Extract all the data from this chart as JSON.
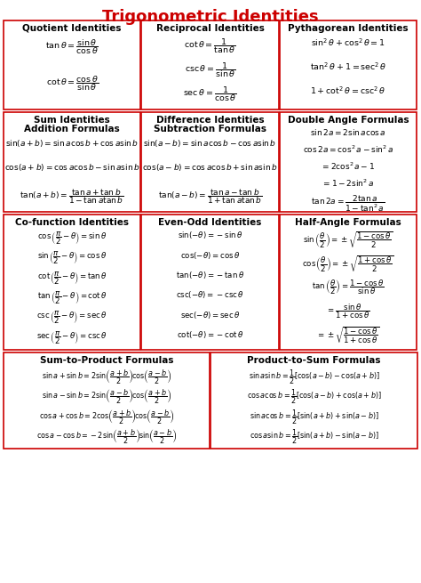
{
  "title": "Trigonometric Identities",
  "title_color": "#CC0000",
  "border_color": "#CC0000",
  "text_color": "#000000",
  "bg_color": "#FFFFFF",
  "boxes": [
    {
      "row": 0,
      "col": 0,
      "title": "Quotient Identities",
      "lines": [
        "$\\tan\\theta = \\dfrac{\\sin\\theta}{\\cos\\theta}$",
        "$\\cot\\theta = \\dfrac{\\cos\\theta}{\\sin\\theta}$"
      ]
    },
    {
      "row": 0,
      "col": 1,
      "title": "Reciprocal Identities",
      "lines": [
        "$\\cot\\theta = \\dfrac{1}{\\tan\\theta}$",
        "$\\csc\\theta = \\dfrac{1}{\\sin\\theta}$",
        "$\\sec\\theta = \\dfrac{1}{\\cos\\theta}$"
      ]
    },
    {
      "row": 0,
      "col": 2,
      "title": "Pythagorean Identities",
      "lines": [
        "$\\sin^2\\theta + \\cos^2\\theta = 1$",
        "$\\tan^2\\theta + 1 = \\sec^2\\theta$",
        "$1 + \\cot^2\\theta = \\csc^2\\theta$"
      ]
    },
    {
      "row": 1,
      "col": 0,
      "title": "Sum Identities\nAddition Formulas",
      "lines": [
        "$\\sin(a+b) = \\sin a\\cos b + \\cos a\\sin b$",
        "$\\cos(a+b) = \\cos a\\cos b - \\sin a\\sin b$",
        "$\\tan(a+b) = \\dfrac{\\tan a + \\tan b}{1 - \\tan a\\tan b}$"
      ]
    },
    {
      "row": 1,
      "col": 1,
      "title": "Difference Identities\nSubtraction Formulas",
      "lines": [
        "$\\sin(a-b) = \\sin a\\cos b - \\cos a\\sin b$",
        "$\\cos(a-b) = \\cos a\\cos b + \\sin a\\sin b$",
        "$\\tan(a-b) = \\dfrac{\\tan a - \\tan b}{1 + \\tan a\\tan b}$"
      ]
    },
    {
      "row": 1,
      "col": 2,
      "title": "Double Angle Formulas",
      "lines": [
        "$\\sin 2a = 2\\sin a\\cos a$",
        "$\\cos 2a = \\cos^2 a - \\sin^2 a$",
        "$= 2\\cos^2 a - 1$",
        "$= 1 - 2\\sin^2 a$",
        "$\\tan 2a = \\dfrac{2\\tan a}{1 - \\tan^2 a}$"
      ]
    },
    {
      "row": 2,
      "col": 0,
      "title": "Co-function Identities",
      "lines": [
        "$\\cos\\left(\\dfrac{\\pi}{2}-\\theta\\right) = \\sin\\theta$",
        "$\\sin\\left(\\dfrac{\\pi}{2}-\\theta\\right) = \\cos\\theta$",
        "$\\cot\\left(\\dfrac{\\pi}{2}-\\theta\\right) = \\tan\\theta$",
        "$\\tan\\left(\\dfrac{\\pi}{2}-\\theta\\right) = \\cot\\theta$",
        "$\\csc\\left(\\dfrac{\\pi}{2}-\\theta\\right) = \\sec\\theta$",
        "$\\sec\\left(\\dfrac{\\pi}{2}-\\theta\\right) = \\csc\\theta$"
      ]
    },
    {
      "row": 2,
      "col": 1,
      "title": "Even-Odd Identities",
      "lines": [
        "$\\sin(-\\theta) = -\\sin\\theta$",
        "$\\cos(-\\theta) = \\cos\\theta$",
        "$\\tan(-\\theta) = -\\tan\\theta$",
        "$\\csc(-\\theta) = -\\csc\\theta$",
        "$\\sec(-\\theta) = \\sec\\theta$",
        "$\\cot(-\\theta) = -\\cot\\theta$"
      ]
    },
    {
      "row": 2,
      "col": 2,
      "title": "Half-Angle Formulas",
      "lines": [
        "$\\sin\\left(\\dfrac{\\theta}{2}\\right) = \\pm\\sqrt{\\dfrac{1-\\cos\\theta}{2}}$",
        "$\\cos\\left(\\dfrac{\\theta}{2}\\right) = \\pm\\sqrt{\\dfrac{1+\\cos\\theta}{2}}$",
        "$\\tan\\left(\\dfrac{\\theta}{2}\\right) = \\dfrac{1-\\cos\\theta}{\\sin\\theta}$",
        "$= \\dfrac{\\sin\\theta}{1+\\cos\\theta}$",
        "$= \\pm\\sqrt{\\dfrac{1-\\cos\\theta}{1+\\cos\\theta}}$"
      ]
    },
    {
      "row": 3,
      "col": 0,
      "title": "Sum-to-Product Formulas",
      "lines": [
        "$\\sin a+\\sin b = 2\\sin\\!\\left(\\dfrac{a+b}{2}\\right)\\!\\cos\\!\\left(\\dfrac{a-b}{2}\\right)$",
        "$\\sin a-\\sin b = 2\\sin\\!\\left(\\dfrac{a-b}{2}\\right)\\!\\cos\\!\\left(\\dfrac{a+b}{2}\\right)$",
        "$\\cos a+\\cos b = 2\\cos\\!\\left(\\dfrac{a+b}{2}\\right)\\!\\cos\\!\\left(\\dfrac{a-b}{2}\\right)$",
        "$\\cos a-\\cos b = -2\\sin\\!\\left(\\dfrac{a+b}{2}\\right)\\!\\sin\\!\\left(\\dfrac{a-b}{2}\\right)$"
      ]
    },
    {
      "row": 3,
      "col": 1,
      "title": "Product-to-Sum Formulas",
      "lines": [
        "$\\sin a\\sin b = \\dfrac{1}{2}\\left[\\cos(a-b) - \\cos(a+b)\\right]$",
        "$\\cos a\\cos b = \\dfrac{1}{2}\\left[\\cos(a-b) + \\cos(a+b)\\right]$",
        "$\\sin a\\cos b = \\dfrac{1}{2}\\left[\\sin(a+b) + \\sin(a-b)\\right]$",
        "$\\cos a\\sin b = \\dfrac{1}{2}\\left[\\sin(a+b) - \\sin(a-b)\\right]$"
      ]
    }
  ]
}
